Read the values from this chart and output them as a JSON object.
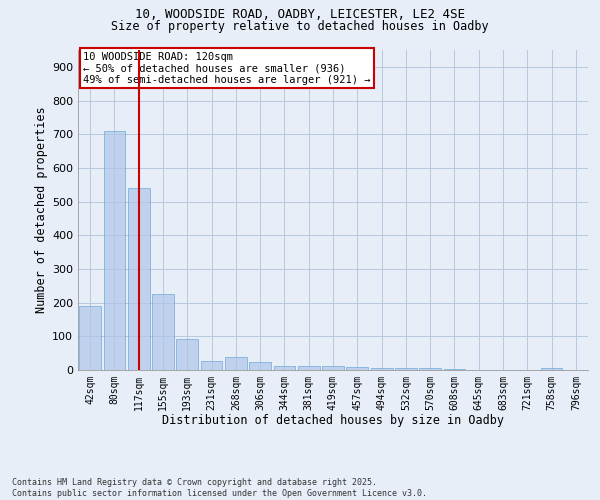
{
  "title_line1": "10, WOODSIDE ROAD, OADBY, LEICESTER, LE2 4SE",
  "title_line2": "Size of property relative to detached houses in Oadby",
  "xlabel": "Distribution of detached houses by size in Oadby",
  "ylabel": "Number of detached properties",
  "bar_labels": [
    "42sqm",
    "80sqm",
    "117sqm",
    "155sqm",
    "193sqm",
    "231sqm",
    "268sqm",
    "306sqm",
    "344sqm",
    "381sqm",
    "419sqm",
    "457sqm",
    "494sqm",
    "532sqm",
    "570sqm",
    "608sqm",
    "645sqm",
    "683sqm",
    "721sqm",
    "758sqm",
    "796sqm"
  ],
  "bar_values": [
    190,
    710,
    540,
    225,
    92,
    28,
    40,
    25,
    13,
    13,
    11,
    10,
    7,
    7,
    5,
    4,
    0,
    0,
    0,
    7,
    0
  ],
  "bar_color": "#aec6e8",
  "bar_edge_color": "#5a9fd4",
  "bar_alpha": 0.7,
  "vline_x_index": 2,
  "vline_color": "#cc0000",
  "annotation_text": "10 WOODSIDE ROAD: 120sqm\n← 50% of detached houses are smaller (936)\n49% of semi-detached houses are larger (921) →",
  "annotation_box_color": "#ffffff",
  "annotation_box_edge": "#cc0000",
  "footer_line1": "Contains HM Land Registry data © Crown copyright and database right 2025.",
  "footer_line2": "Contains public sector information licensed under the Open Government Licence v3.0.",
  "background_color": "#e8eef8",
  "grid_color": "#b8c8e0",
  "ylim": [
    0,
    950
  ],
  "yticks": [
    0,
    100,
    200,
    300,
    400,
    500,
    600,
    700,
    800,
    900
  ]
}
